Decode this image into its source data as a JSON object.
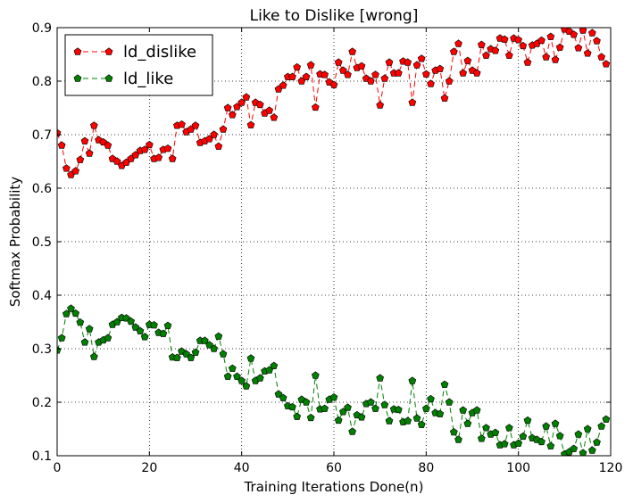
{
  "chart_data": {
    "type": "line",
    "title": "Like to Dislike [wrong]",
    "xlabel": "Training Iterations Done(n)",
    "ylabel": "Softmax Probability",
    "xlim": [
      0,
      120
    ],
    "ylim": [
      0.1,
      0.9
    ],
    "xticks": [
      "0",
      "20",
      "40",
      "60",
      "80",
      "100",
      "120"
    ],
    "yticks": [
      "0.1",
      "0.2",
      "0.3",
      "0.4",
      "0.5",
      "0.6",
      "0.7",
      "0.8",
      "0.9"
    ],
    "grid": true,
    "legend_position": "top-left",
    "series": [
      {
        "name": "ld_dislike",
        "color": "#ff0000",
        "marker": "pentagon",
        "linestyle": "dashed",
        "values": [
          0.703,
          0.68,
          0.637,
          0.625,
          0.632,
          0.653,
          0.688,
          0.665,
          0.717,
          0.69,
          0.686,
          0.68,
          0.655,
          0.65,
          0.642,
          0.648,
          0.655,
          0.662,
          0.67,
          0.672,
          0.681,
          0.655,
          0.657,
          0.672,
          0.674,
          0.655,
          0.717,
          0.719,
          0.705,
          0.71,
          0.717,
          0.685,
          0.688,
          0.692,
          0.7,
          0.678,
          0.71,
          0.75,
          0.737,
          0.752,
          0.76,
          0.77,
          0.718,
          0.76,
          0.756,
          0.74,
          0.745,
          0.732,
          0.785,
          0.792,
          0.808,
          0.808,
          0.826,
          0.8,
          0.808,
          0.83,
          0.751,
          0.813,
          0.812,
          0.798,
          0.793,
          0.835,
          0.82,
          0.812,
          0.855,
          0.825,
          0.828,
          0.805,
          0.8,
          0.812,
          0.755,
          0.805,
          0.835,
          0.815,
          0.815,
          0.837,
          0.835,
          0.76,
          0.83,
          0.842,
          0.813,
          0.795,
          0.82,
          0.823,
          0.768,
          0.8,
          0.855,
          0.87,
          0.815,
          0.838,
          0.82,
          0.815,
          0.868,
          0.848,
          0.86,
          0.857,
          0.88,
          0.878,
          0.848,
          0.88,
          0.877,
          0.866,
          0.835,
          0.867,
          0.87,
          0.876,
          0.845,
          0.883,
          0.84,
          0.863,
          0.897,
          0.893,
          0.887,
          0.862,
          0.895,
          0.852,
          0.89,
          0.875,
          0.845,
          0.832
        ]
      },
      {
        "name": "ld_like",
        "color": "#007f00",
        "marker": "pentagon",
        "linestyle": "dashed",
        "values": [
          0.297,
          0.32,
          0.365,
          0.375,
          0.366,
          0.349,
          0.312,
          0.337,
          0.285,
          0.312,
          0.316,
          0.32,
          0.345,
          0.35,
          0.358,
          0.357,
          0.351,
          0.34,
          0.333,
          0.322,
          0.345,
          0.344,
          0.33,
          0.328,
          0.343,
          0.284,
          0.283,
          0.295,
          0.29,
          0.283,
          0.293,
          0.315,
          0.315,
          0.307,
          0.3,
          0.323,
          0.29,
          0.248,
          0.263,
          0.248,
          0.24,
          0.23,
          0.282,
          0.24,
          0.245,
          0.258,
          0.26,
          0.268,
          0.215,
          0.208,
          0.193,
          0.191,
          0.173,
          0.205,
          0.2,
          0.171,
          0.25,
          0.187,
          0.188,
          0.205,
          0.209,
          0.166,
          0.182,
          0.19,
          0.145,
          0.176,
          0.172,
          0.197,
          0.2,
          0.188,
          0.245,
          0.195,
          0.165,
          0.187,
          0.186,
          0.163,
          0.165,
          0.24,
          0.17,
          0.158,
          0.188,
          0.206,
          0.18,
          0.178,
          0.233,
          0.2,
          0.144,
          0.13,
          0.185,
          0.16,
          0.18,
          0.185,
          0.132,
          0.152,
          0.14,
          0.143,
          0.12,
          0.122,
          0.152,
          0.12,
          0.123,
          0.136,
          0.166,
          0.133,
          0.13,
          0.126,
          0.155,
          0.118,
          0.16,
          0.137,
          0.103,
          0.107,
          0.113,
          0.14,
          0.105,
          0.15,
          0.11,
          0.125,
          0.155,
          0.168
        ]
      }
    ]
  }
}
